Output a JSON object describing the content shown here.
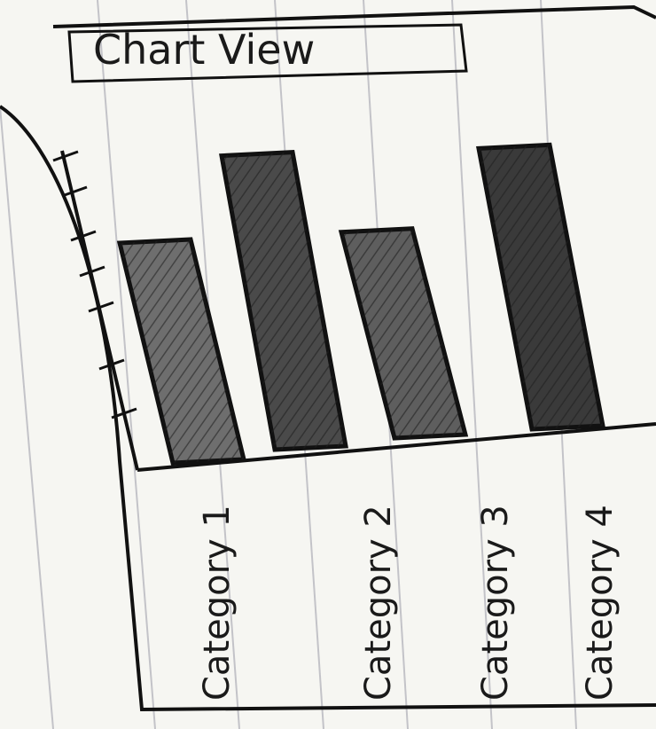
{
  "window": {
    "title": "Chart View"
  },
  "chart_data": {
    "type": "bar",
    "categories": [
      "Category 1",
      "Category 2",
      "Category 3",
      "Category 4"
    ],
    "values": [
      6,
      8.4,
      6.3,
      8.6
    ],
    "ylim": [
      0,
      10
    ],
    "xlabel": "",
    "ylabel": "",
    "grid": false,
    "legend": "none",
    "bar_colors": [
      "#6e6e6e",
      "#4a4a4a",
      "#5e5e5e",
      "#3a3a3a"
    ]
  }
}
